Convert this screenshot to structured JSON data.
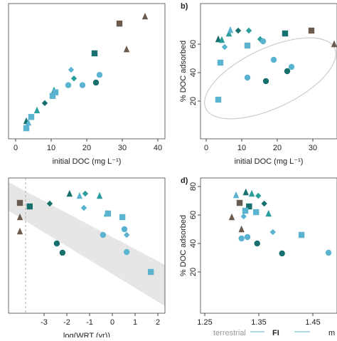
{
  "chart_data": [
    {
      "type": "scatter",
      "x_label": "initial DOC (mg L⁻¹)",
      "xlim": [
        -2,
        42
      ],
      "ylim": [
        -2.36,
        24
      ],
      "xticks": [
        0,
        10,
        20,
        30,
        40
      ],
      "series": [
        {
          "color": "#6b5a4e",
          "marker": "square",
          "x": [
            29.2
          ],
          "values": [
            20.1
          ]
        },
        {
          "color": "#6b5a4e",
          "marker": "triangle",
          "x": [
            36.4,
            31.2
          ],
          "values": [
            21.5,
            15.1
          ]
        },
        {
          "color": "#17706e",
          "marker": "square",
          "x": [
            22.2
          ],
          "values": [
            14.3
          ]
        },
        {
          "color": "#17706e",
          "marker": "circle",
          "x": [
            22.6
          ],
          "values": [
            8.6
          ]
        },
        {
          "color": "#17706e",
          "marker": "triangle",
          "x": [
            3
          ],
          "values": [
            1.1
          ]
        },
        {
          "color": "#17706e",
          "marker": "diamond",
          "x": [
            8.2
          ],
          "values": [
            4.6
          ]
        },
        {
          "color": "#2a9d9d",
          "marker": "triangle",
          "x": [
            10.8,
            6
          ],
          "values": [
            7.1,
            3.2
          ]
        },
        {
          "color": "#2a9d9d",
          "marker": "diamond",
          "x": [
            16.4
          ],
          "values": [
            9.4
          ]
        },
        {
          "color": "#5ab4d0",
          "marker": "circle",
          "x": [
            23.6,
            18.8,
            14.8
          ],
          "values": [
            10.1,
            8.1,
            8.1
          ]
        },
        {
          "color": "#5ab4d0",
          "marker": "square",
          "x": [
            3,
            11.2,
            4.4,
            10.4
          ],
          "values": [
            -0.3,
            6.7,
            1.9,
            6
          ]
        },
        {
          "color": "#5ab4d0",
          "marker": "diamond",
          "x": [
            15.6
          ],
          "values": [
            11.1
          ]
        },
        {
          "color": "#5ab4d0",
          "marker": "triangle",
          "x": [
            3.6
          ],
          "values": [
            0.8
          ]
        }
      ]
    },
    {
      "type": "scatter",
      "title": "b)",
      "x_label": "initial DOC (mg L⁻¹)",
      "y_label": "% DOC adsorbed",
      "xlim": [
        -1.6,
        36.8
      ],
      "ylim": [
        -6.5,
        88.5
      ],
      "xticks": [
        0,
        10,
        20,
        30
      ],
      "yticks": [
        20,
        40,
        60
      ],
      "series": [
        {
          "color": "#6b5a4e",
          "marker": "square",
          "x": [
            29.6
          ],
          "values": [
            69.5
          ]
        },
        {
          "color": "#6b5a4e",
          "marker": "triangle",
          "x": [
            36
          ],
          "values": [
            60
          ]
        },
        {
          "color": "#17706e",
          "marker": "square",
          "x": [
            22.2
          ],
          "values": [
            67.5
          ]
        },
        {
          "color": "#17706e",
          "marker": "circle",
          "x": [
            22.8,
            16.8
          ],
          "values": [
            41,
            34
          ]
        },
        {
          "color": "#17706e",
          "marker": "triangle",
          "x": [
            3.4
          ],
          "values": [
            63.5
          ]
        },
        {
          "color": "#17706e",
          "marker": "diamond",
          "x": [
            9
          ],
          "values": [
            69.5
          ]
        },
        {
          "color": "#2a9d9d",
          "marker": "triangle",
          "x": [
            6.4,
            4.4
          ],
          "values": [
            67.5,
            63
          ]
        },
        {
          "color": "#2a9d9d",
          "marker": "diamond",
          "x": [
            12,
            15.2
          ],
          "values": [
            69.5,
            63.5
          ]
        },
        {
          "color": "#5ab4d0",
          "marker": "circle",
          "x": [
            24,
            19,
            11.6,
            16
          ],
          "values": [
            44,
            49,
            36.5,
            62
          ]
        },
        {
          "color": "#5ab4d0",
          "marker": "square",
          "x": [
            3.4,
            11.6,
            4
          ],
          "values": [
            21,
            59,
            47
          ]
        },
        {
          "color": "#5ab4d0",
          "marker": "triangle",
          "x": [
            6.8
          ],
          "values": [
            70
          ]
        },
        {
          "color": "#5ab4d0",
          "marker": "diamond",
          "x": [
            5.2
          ],
          "values": [
            58
          ]
        }
      ]
    },
    {
      "type": "scatter",
      "x_label": "log(WRT (yr))",
      "xlim": [
        -4.56,
        2.31
      ],
      "ylim": [
        -9,
        86
      ],
      "xticks": [
        -3,
        -2,
        -1,
        0,
        1,
        2
      ],
      "series": [
        {
          "color": "#6b5a4e",
          "marker": "square",
          "x": [
            -4.06
          ],
          "values": [
            68.5
          ]
        },
        {
          "color": "#6b5a4e",
          "marker": "triangle",
          "x": [
            -4.06,
            -4.06
          ],
          "values": [
            58.5,
            48.5
          ]
        },
        {
          "color": "#17706e",
          "marker": "square",
          "x": [
            -3.63
          ],
          "values": [
            66
          ]
        },
        {
          "color": "#17706e",
          "marker": "triangle",
          "x": [
            -1.88
          ],
          "values": [
            75
          ]
        },
        {
          "color": "#17706e",
          "marker": "circle",
          "x": [
            -2.44,
            -2.19
          ],
          "values": [
            40,
            33.5
          ]
        },
        {
          "color": "#17706e",
          "marker": "diamond",
          "x": [
            -2.75
          ],
          "values": [
            68
          ]
        },
        {
          "color": "#2a9d9d",
          "marker": "triangle",
          "x": [
            -0.56,
            -0.25
          ],
          "values": [
            73.5,
            61
          ]
        },
        {
          "color": "#2a9d9d",
          "marker": "diamond",
          "x": [
            -1.19
          ],
          "values": [
            75
          ]
        },
        {
          "color": "#5ab4d0",
          "marker": "square",
          "x": [
            1.69,
            -0.19,
            0.44
          ],
          "values": [
            20,
            61,
            58.5
          ]
        },
        {
          "color": "#5ab4d0",
          "marker": "circle",
          "x": [
            0.63,
            -0.41,
            0.53
          ],
          "values": [
            34,
            46,
            50
          ]
        },
        {
          "color": "#5ab4d0",
          "marker": "diamond",
          "x": [
            0.63,
            -1.25
          ],
          "values": [
            46,
            65
          ]
        },
        {
          "color": "#5ab4d0",
          "marker": "triangle",
          "x": [
            -1.44
          ],
          "values": [
            73.5
          ]
        }
      ]
    },
    {
      "type": "scatter",
      "title": "d)",
      "y_label": "% DOC adsorbed",
      "xlim": [
        1.2421,
        1.4947
      ],
      "ylim": [
        -9,
        86
      ],
      "xticks": [
        1.25,
        1.35,
        1.45
      ],
      "yticks": [
        20,
        40,
        60,
        80
      ],
      "series": [
        {
          "color": "#6b5a4e",
          "marker": "square",
          "x": [
            1.3145
          ],
          "values": [
            68.5
          ]
        },
        {
          "color": "#6b5a4e",
          "marker": "triangle",
          "x": [
            1.3,
            1.318
          ],
          "values": [
            58.5,
            50
          ]
        },
        {
          "color": "#17706e",
          "marker": "square",
          "x": [
            1.332
          ],
          "values": [
            66
          ]
        },
        {
          "color": "#17706e",
          "marker": "triangle",
          "x": [
            1.326
          ],
          "values": [
            76
          ]
        },
        {
          "color": "#17706e",
          "marker": "circle",
          "x": [
            1.347,
            1.393
          ],
          "values": [
            40,
            33
          ]
        },
        {
          "color": "#17706e",
          "marker": "diamond",
          "x": [
            1.36
          ],
          "values": [
            68
          ]
        },
        {
          "color": "#2a9d9d",
          "marker": "triangle",
          "x": [
            1.337,
            1.368
          ],
          "values": [
            75,
            61
          ]
        },
        {
          "color": "#2a9d9d",
          "marker": "diamond",
          "x": [
            1.349
          ],
          "values": [
            73.5
          ]
        },
        {
          "color": "#5ab4d0",
          "marker": "square",
          "x": [
            1.429,
            1.325,
            1.345
          ],
          "values": [
            46,
            63,
            62
          ]
        },
        {
          "color": "#5ab4d0",
          "marker": "circle",
          "x": [
            1.479,
            1.318,
            1.329
          ],
          "values": [
            33.5,
            43.5,
            44.5
          ]
        },
        {
          "color": "#5ab4d0",
          "marker": "triangle",
          "x": [
            1.308
          ],
          "values": [
            74
          ]
        },
        {
          "color": "#5ab4d0",
          "marker": "diamond",
          "x": [
            1.376,
            1.322
          ],
          "values": [
            48,
            59
          ]
        }
      ]
    }
  ],
  "legend_labels": [
    "terrestrial",
    "FI",
    "m"
  ]
}
